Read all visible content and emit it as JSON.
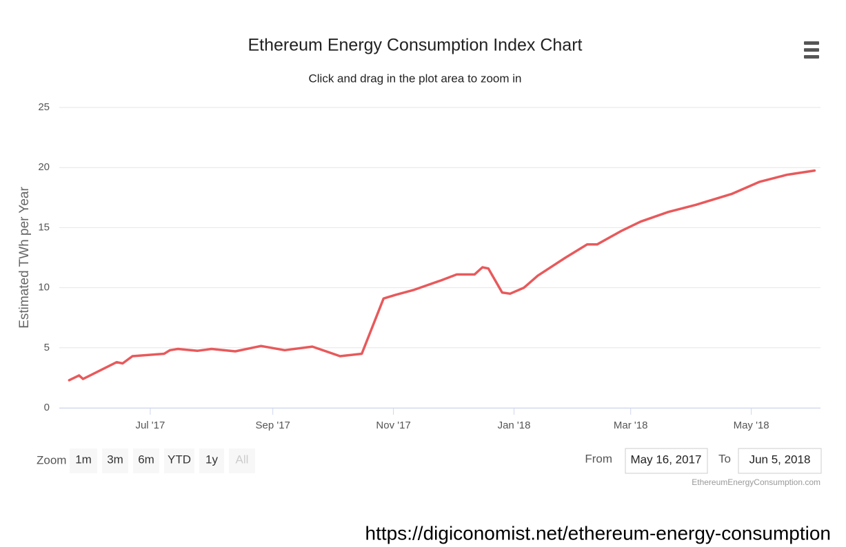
{
  "chart_data": {
    "type": "line",
    "title": "Ethereum Energy Consumption Index Chart",
    "subtitle": "Click and drag in the plot area to zoom in",
    "ylabel": "Estimated TWh per Year",
    "x": [
      "2017-05-21",
      "2017-05-26",
      "2017-05-28",
      "2017-06-14",
      "2017-06-17",
      "2017-06-22",
      "2017-07-08",
      "2017-07-11",
      "2017-07-15",
      "2017-07-25",
      "2017-08-01",
      "2017-08-13",
      "2017-08-26",
      "2017-09-07",
      "2017-09-21",
      "2017-10-05",
      "2017-10-16",
      "2017-10-27",
      "2017-11-02",
      "2017-11-11",
      "2017-11-25",
      "2017-12-03",
      "2017-12-12",
      "2017-12-16",
      "2017-12-19",
      "2017-12-26",
      "2017-12-30",
      "2018-01-06",
      "2018-01-13",
      "2018-01-27",
      "2018-02-07",
      "2018-02-12",
      "2018-02-24",
      "2018-03-06",
      "2018-03-20",
      "2018-04-03",
      "2018-04-21",
      "2018-05-05",
      "2018-05-19",
      "2018-06-02"
    ],
    "series": [
      {
        "name": "Estimated TWh per Year",
        "color": "#e8595b",
        "values": [
          2.3,
          2.7,
          2.4,
          3.8,
          3.7,
          4.3,
          4.5,
          4.8,
          4.9,
          4.75,
          4.9,
          4.7,
          5.15,
          4.8,
          5.1,
          4.3,
          4.5,
          9.1,
          9.4,
          9.8,
          10.6,
          11.1,
          11.1,
          11.7,
          11.6,
          9.6,
          9.5,
          10.0,
          11.0,
          12.5,
          13.6,
          13.6,
          14.7,
          15.5,
          16.3,
          16.9,
          17.8,
          18.8,
          19.4,
          19.75
        ]
      }
    ],
    "xlim": [
      "2017-05-16",
      "2018-06-05"
    ],
    "xticks": [
      {
        "value": "2017-07-01",
        "label": "Jul '17"
      },
      {
        "value": "2017-09-01",
        "label": "Sep '17"
      },
      {
        "value": "2017-11-01",
        "label": "Nov '17"
      },
      {
        "value": "2018-01-01",
        "label": "Jan '18"
      },
      {
        "value": "2018-03-01",
        "label": "Mar '18"
      },
      {
        "value": "2018-05-01",
        "label": "May '18"
      }
    ],
    "ylim": [
      0,
      25
    ],
    "yticks": [
      0,
      5,
      10,
      15,
      20,
      25
    ],
    "grid": true
  },
  "ui": {
    "zoom_label": "Zoom",
    "buttons": [
      "1m",
      "3m",
      "6m",
      "YTD",
      "1y",
      "All"
    ],
    "from_label": "From",
    "from_value": "May 16, 2017",
    "to_label": "To",
    "to_value": "Jun 5, 2018",
    "credit": "EthereumEnergyConsumption.com",
    "source_url": "https://digiconomist.net/ethereum-energy-consumption"
  }
}
